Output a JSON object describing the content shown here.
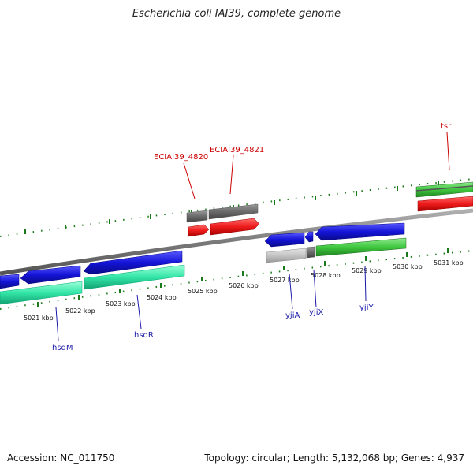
{
  "title": "Escherichia coli IAI39, complete genome",
  "accession": "Accession: NC_011750",
  "summary": "Topology: circular; Length: 5,132,068 bp; Genes: 4,937",
  "colors": {
    "backbone": "#808080",
    "tick": "#1a7a1a",
    "forward_cds": "#ee1c1c",
    "forward_gene": "#6e6e6e",
    "reverse_cds": "#1414d8",
    "reverse_gene_aqua": "#33e6a8",
    "reverse_gene_green": "#3fc63f",
    "pseudo_gray": "#c8c8c8",
    "label_red": "#cc0000",
    "label_blue": "#1a1aa8"
  },
  "scale_labels": [
    "5021 kbp",
    "5022 kbp",
    "5023 kbp",
    "5024 kbp",
    "5025 kbp",
    "5026 kbp",
    "5027 kbp",
    "5028 kbp",
    "5029 kbp",
    "5030 kbp",
    "5031 kbp"
  ],
  "gene_labels": {
    "eciai39_4820": "ECIAI39_4820",
    "eciai39_4821": "ECIAI39_4821",
    "tsr": "tsr",
    "hsdm": "hsdM",
    "hsdr": "hsdR",
    "yjia": "yjiA",
    "yjix": "yjiX",
    "yjiy": "yjiY"
  }
}
